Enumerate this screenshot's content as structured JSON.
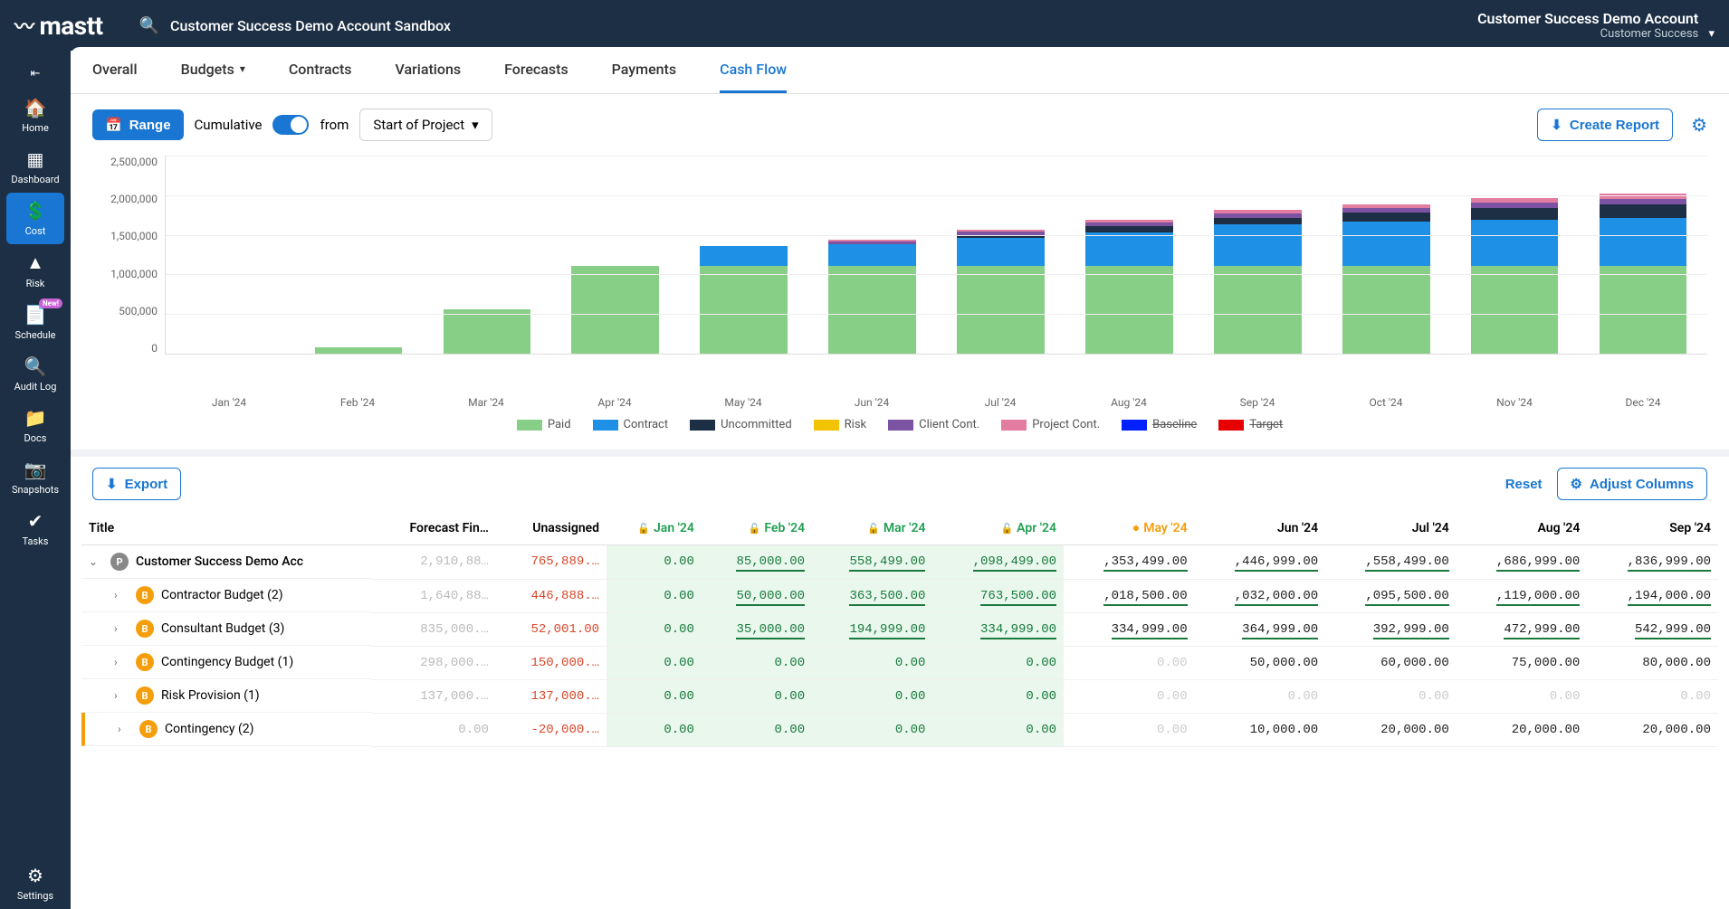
{
  "topbar": {
    "logo": "mastt",
    "breadcrumb": "Customer Success Demo Account Sandbox",
    "account_title": "Customer Success Demo Account",
    "account_subtitle": "Customer Success"
  },
  "sidebar": {
    "items": [
      {
        "label": "Home",
        "icon": "🏠"
      },
      {
        "label": "Dashboard",
        "icon": "▦"
      },
      {
        "label": "Cost",
        "icon": "💲",
        "active": true
      },
      {
        "label": "Risk",
        "icon": "▲"
      },
      {
        "label": "Schedule",
        "icon": "📄",
        "badge": "New!"
      },
      {
        "label": "Audit Log",
        "icon": "🔍"
      },
      {
        "label": "Docs",
        "icon": "📁"
      },
      {
        "label": "Snapshots",
        "icon": "📷"
      },
      {
        "label": "Tasks",
        "icon": "✔"
      }
    ],
    "settings_label": "Settings"
  },
  "tabs": [
    "Overall",
    "Budgets",
    "Contracts",
    "Variations",
    "Forecasts",
    "Payments",
    "Cash Flow"
  ],
  "active_tab": "Cash Flow",
  "toolbar": {
    "range": "Range",
    "cumulative": "Cumulative",
    "from": "from",
    "start": "Start of Project",
    "create_report": "Create Report"
  },
  "chart": {
    "type": "stacked-bar",
    "y_max": 2500000,
    "y_ticks": [
      "2,500,000",
      "2,000,000",
      "1,500,000",
      "1,000,000",
      "500,000",
      "0"
    ],
    "categories": [
      "Jan '24",
      "Feb '24",
      "Mar '24",
      "Apr '24",
      "May '24",
      "Jun '24",
      "Jul '24",
      "Aug '24",
      "Sep '24",
      "Oct '24",
      "Nov '24",
      "Dec '24"
    ],
    "series_colors": {
      "Paid": "#87cf87",
      "Contract": "#1e90e5",
      "Uncommitted": "#1c2f44",
      "Risk": "#f2c300",
      "Client Cont.": "#7c52a3",
      "Project Cont.": "#e27ca0",
      "Baseline": "#0020ff",
      "Target": "#e60000"
    },
    "legend": [
      "Paid",
      "Contract",
      "Uncommitted",
      "Risk",
      "Client Cont.",
      "Project Cont.",
      "Baseline",
      "Target"
    ],
    "struck": [
      "Baseline",
      "Target"
    ],
    "stacks": [
      {
        "Paid": 0,
        "Contract": 0,
        "Uncommitted": 0,
        "Client Cont.": 0,
        "Project Cont.": 0
      },
      {
        "Paid": 85000,
        "Contract": 0,
        "Uncommitted": 0,
        "Client Cont.": 0,
        "Project Cont.": 0
      },
      {
        "Paid": 558000,
        "Contract": 0,
        "Uncommitted": 0,
        "Client Cont.": 0,
        "Project Cont.": 0
      },
      {
        "Paid": 1098000,
        "Contract": 0,
        "Uncommitted": 0,
        "Client Cont.": 0,
        "Project Cont.": 0
      },
      {
        "Paid": 1100000,
        "Contract": 255000,
        "Uncommitted": 0,
        "Client Cont.": 0,
        "Project Cont.": 0
      },
      {
        "Paid": 1100000,
        "Contract": 280000,
        "Uncommitted": 0,
        "Client Cont.": 35000,
        "Project Cont.": 15000
      },
      {
        "Paid": 1100000,
        "Contract": 360000,
        "Uncommitted": 30000,
        "Client Cont.": 45000,
        "Project Cont.": 20000
      },
      {
        "Paid": 1100000,
        "Contract": 420000,
        "Uncommitted": 80000,
        "Client Cont.": 50000,
        "Project Cont.": 30000
      },
      {
        "Paid": 1100000,
        "Contract": 520000,
        "Uncommitted": 90000,
        "Client Cont.": 55000,
        "Project Cont.": 40000
      },
      {
        "Paid": 1100000,
        "Contract": 560000,
        "Uncommitted": 110000,
        "Client Cont.": 60000,
        "Project Cont.": 45000
      },
      {
        "Paid": 1100000,
        "Contract": 580000,
        "Uncommitted": 150000,
        "Client Cont.": 65000,
        "Project Cont.": 55000
      },
      {
        "Paid": 1100000,
        "Contract": 600000,
        "Uncommitted": 170000,
        "Client Cont.": 70000,
        "Project Cont.": 70000
      }
    ],
    "background_color": "#ffffff",
    "grid_color": "#eeeeee"
  },
  "table_toolbar": {
    "export": "Export",
    "reset": "Reset",
    "adjust": "Adjust Columns"
  },
  "table": {
    "columns": [
      "Title",
      "Forecast Fin…",
      "Unassigned",
      "Jan '24",
      "Feb '24",
      "Mar '24",
      "Apr '24",
      "May '24",
      "Jun '24",
      "Jul '24",
      "Aug '24",
      "Sep '24"
    ],
    "locked_months_idx": [
      3,
      4,
      5,
      6
    ],
    "current_month_idx": 7,
    "rows": [
      {
        "type": "main",
        "title": "Customer Success Demo Acc",
        "badge": "P",
        "forecast": "2,910,88…",
        "unassigned": "765,889.…",
        "vals": [
          "0.00",
          "85,000.00",
          "558,499.00",
          ",098,499.00",
          ",353,499.00",
          ",446,999.00",
          ",558,499.00",
          ",686,999.00",
          ",836,999.00"
        ],
        "underlined": true
      },
      {
        "type": "sub",
        "title": "Contractor Budget  (2)",
        "badge": "B",
        "forecast": "1,640,88…",
        "unassigned": "446,888.…",
        "vals": [
          "0.00",
          "50,000.00",
          "363,500.00",
          "763,500.00",
          ",018,500.00",
          ",032,000.00",
          ",095,500.00",
          ",119,000.00",
          ",194,000.00"
        ],
        "underlined": true
      },
      {
        "type": "sub",
        "title": "Consultant Budget  (3)",
        "badge": "B",
        "forecast": "835,000.…",
        "unassigned": "52,001.00",
        "vals": [
          "0.00",
          "35,000.00",
          "194,999.00",
          "334,999.00",
          "334,999.00",
          "364,999.00",
          "392,999.00",
          "472,999.00",
          "542,999.00"
        ],
        "underlined": true
      },
      {
        "type": "sub",
        "title": "Contingency Budget  (1)",
        "badge": "B",
        "forecast": "298,000.…",
        "unassigned": "150,000.…",
        "vals": [
          "0.00",
          "0.00",
          "0.00",
          "0.00",
          "0.00",
          "50,000.00",
          "60,000.00",
          "75,000.00",
          "80,000.00"
        ],
        "underlined": false,
        "gray_first_future": true
      },
      {
        "type": "sub",
        "title": "Risk Provision  (1)",
        "badge": "B",
        "forecast": "137,000.…",
        "unassigned": "137,000.…",
        "vals": [
          "0.00",
          "0.00",
          "0.00",
          "0.00",
          "0.00",
          "0.00",
          "0.00",
          "0.00",
          "0.00"
        ],
        "underlined": false,
        "gray_all_future": true
      },
      {
        "type": "sub",
        "title": "Contingency  (2)",
        "badge": "B",
        "forecast": "0.00",
        "unassigned": "-20,000.…",
        "orange_bar": true,
        "vals": [
          "0.00",
          "0.00",
          "0.00",
          "0.00",
          "0.00",
          "10,000.00",
          "20,000.00",
          "20,000.00",
          "20,000.00"
        ],
        "underlined": false,
        "gray_first_future": true
      }
    ]
  }
}
